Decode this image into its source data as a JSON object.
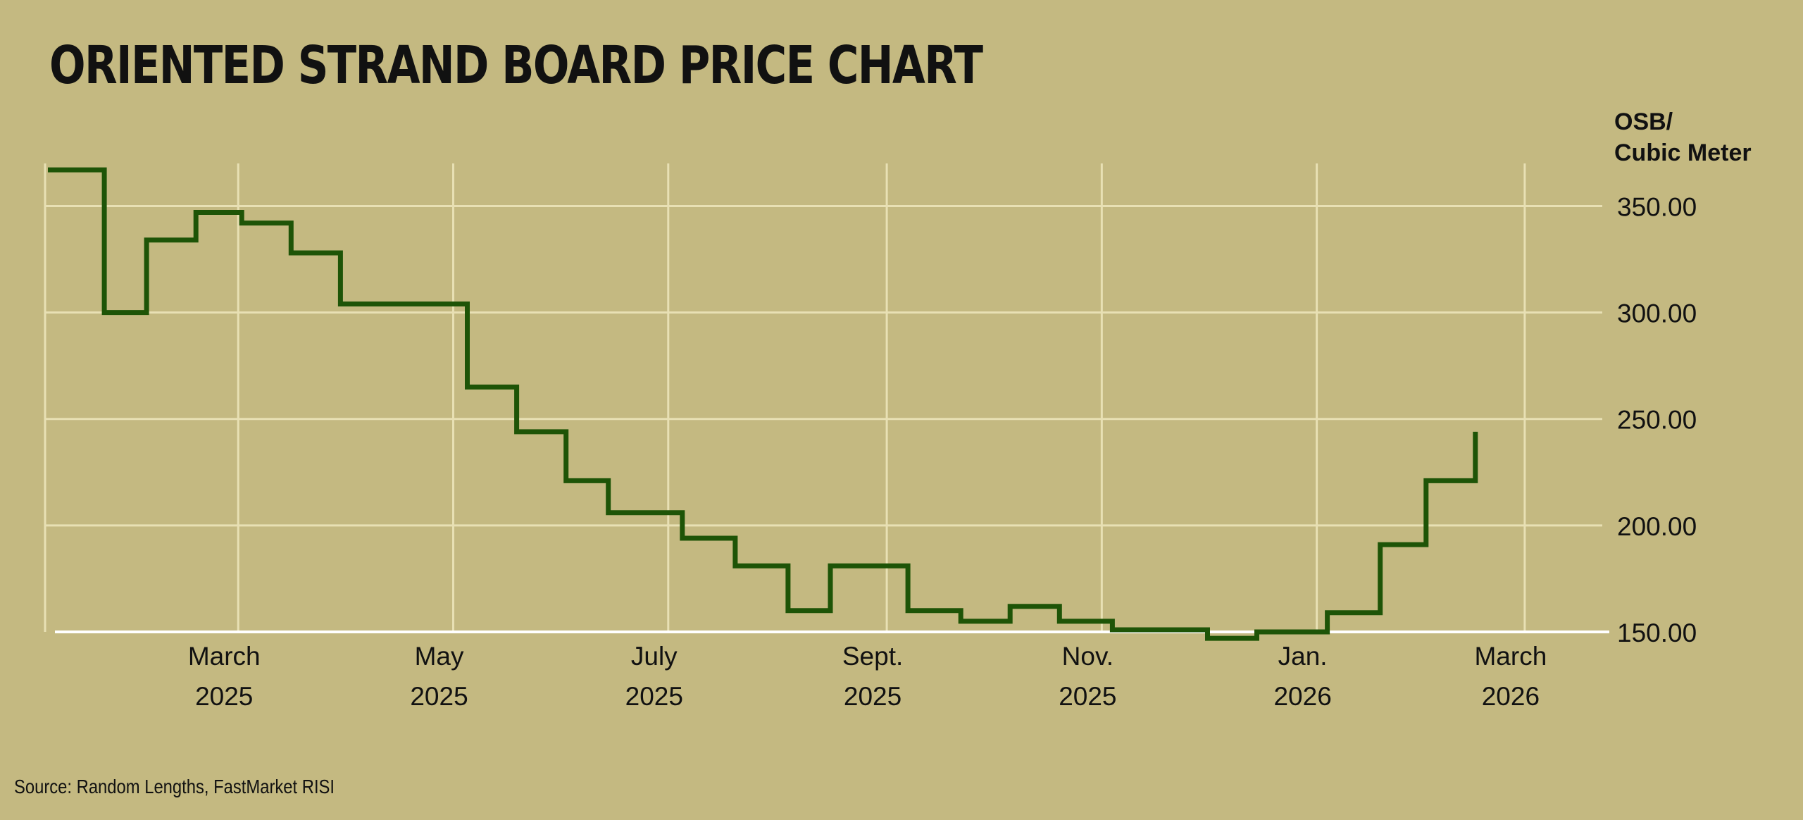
{
  "title": "ORIENTED STRAND BOARD PRICE CHART",
  "source": "Source: Random Lengths, FastMarket RISI",
  "colors": {
    "background": "#c4b981",
    "grid": "#e8e0b4",
    "line": "#1e5407",
    "baseline": "#ffffff",
    "text": "#111111"
  },
  "chart_data": {
    "type": "line",
    "step": true,
    "grid": true,
    "ylabel": [
      "OSB/",
      "Cubic Meter"
    ],
    "xlabel": "",
    "ylim": [
      150,
      370
    ],
    "xlim": [
      "2025-01-06",
      "2026-03-25"
    ],
    "yticks": [
      {
        "value": 150,
        "label": "150.00"
      },
      {
        "value": 200,
        "label": "200.00"
      },
      {
        "value": 250,
        "label": "250.00"
      },
      {
        "value": 300,
        "label": "300.00"
      },
      {
        "value": 350,
        "label": "350.00"
      }
    ],
    "xticks": [
      {
        "date": "2025-03-01",
        "label": [
          "March",
          "2025"
        ]
      },
      {
        "date": "2025-05-01",
        "label": [
          "May",
          "2025"
        ]
      },
      {
        "date": "2025-07-01",
        "label": [
          "July",
          "2025"
        ]
      },
      {
        "date": "2025-09-01",
        "label": [
          "Sept.",
          "2025"
        ]
      },
      {
        "date": "2025-11-01",
        "label": [
          "Nov.",
          "2025"
        ]
      },
      {
        "date": "2026-01-01",
        "label": [
          "Jan.",
          "2026"
        ]
      },
      {
        "date": "2026-03-01",
        "label": [
          "March",
          "2026"
        ]
      }
    ],
    "series": [
      {
        "points": [
          {
            "x": "2025-01-06",
            "y": 367
          },
          {
            "x": "2025-01-22",
            "y": 300
          },
          {
            "x": "2025-02-03",
            "y": 334
          },
          {
            "x": "2025-02-17",
            "y": 347
          },
          {
            "x": "2025-03-02",
            "y": 342
          },
          {
            "x": "2025-03-16",
            "y": 328
          },
          {
            "x": "2025-03-30",
            "y": 304
          },
          {
            "x": "2025-05-05",
            "y": 265
          },
          {
            "x": "2025-05-19",
            "y": 244
          },
          {
            "x": "2025-06-02",
            "y": 221
          },
          {
            "x": "2025-06-14",
            "y": 206
          },
          {
            "x": "2025-07-05",
            "y": 194
          },
          {
            "x": "2025-07-20",
            "y": 181
          },
          {
            "x": "2025-08-04",
            "y": 160
          },
          {
            "x": "2025-08-16",
            "y": 181
          },
          {
            "x": "2025-09-07",
            "y": 160
          },
          {
            "x": "2025-09-22",
            "y": 155
          },
          {
            "x": "2025-10-06",
            "y": 162
          },
          {
            "x": "2025-10-20",
            "y": 155
          },
          {
            "x": "2025-11-04",
            "y": 151
          },
          {
            "x": "2025-12-01",
            "y": 147
          },
          {
            "x": "2025-12-15",
            "y": 150
          },
          {
            "x": "2026-01-04",
            "y": 159
          },
          {
            "x": "2026-01-19",
            "y": 191
          },
          {
            "x": "2026-02-01",
            "y": 221
          },
          {
            "x": "2026-02-15",
            "y": 244
          }
        ]
      }
    ]
  }
}
